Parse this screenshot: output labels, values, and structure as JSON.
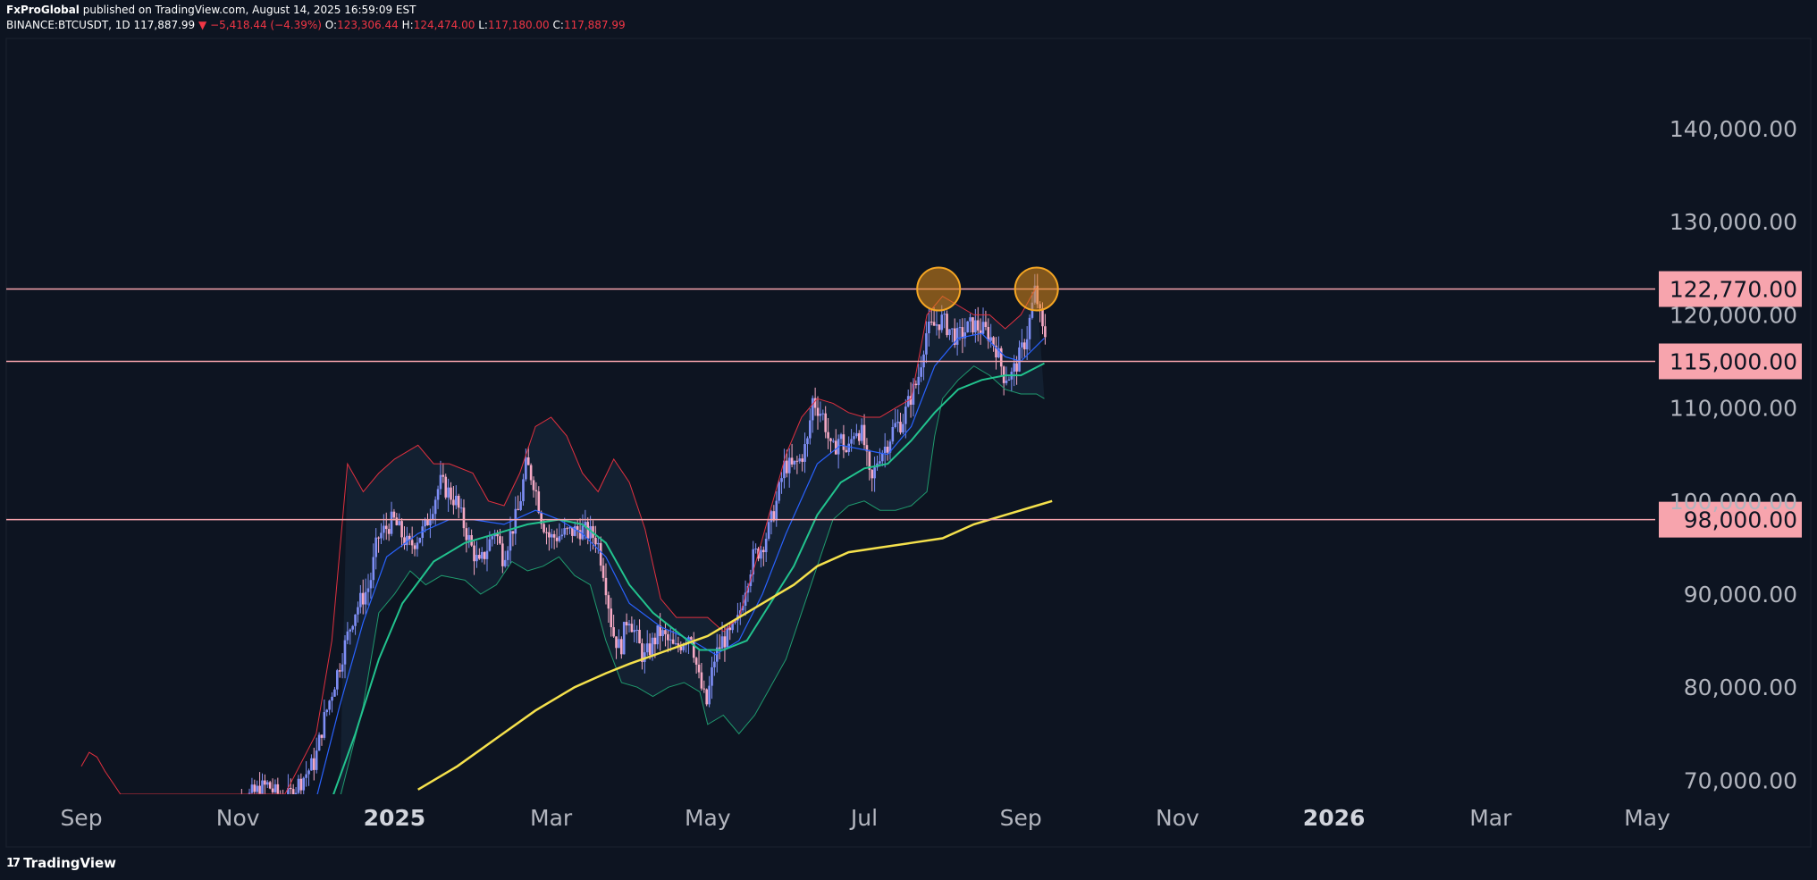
{
  "header": {
    "author": "FxProGlobal",
    "published_text": "published on TradingView.com, August 14, 2025 16:59:09 EST",
    "symbol": "BINANCE:BTCUSDT, 1D",
    "last": "117,887.99",
    "arrow": "▼",
    "change": "−5,418.44 (−4.39%)",
    "o_label": "O:",
    "o_value": "123,306.44",
    "h_label": "H:",
    "h_value": "124,474.00",
    "l_label": "L:",
    "l_value": "117,180.00",
    "c_label": "C:",
    "c_value": "117,887.99"
  },
  "footer": {
    "brand": "TradingView",
    "brand_mark": "17"
  },
  "colors": {
    "background": "#0d1421",
    "candle_up": "#7e8ef5",
    "candle_down": "#f5a9c4",
    "level_line": "#f7a4ad",
    "level_tag_bg": "#f7a4ad",
    "ema_fast": "#2962ff",
    "ema_mid": "#22c38e",
    "sma_200": "#f5e14c",
    "bb_upper": "#e0303f",
    "bb_lower": "#1f9a6e",
    "circle_fill": "#e08a1a",
    "circle_stroke": "#f5a623"
  },
  "chart_data": {
    "type": "candlestick",
    "symbol": "BINANCE:BTCUSDT",
    "timeframe": "1D",
    "ylim": [
      68000,
      150000
    ],
    "y_ticks": [
      "140,000.00",
      "130,000.00",
      "120,000.00",
      "110,000.00",
      "100,000.00",
      "90,000.00",
      "80,000.00",
      "70,000.00"
    ],
    "y_tick_values": [
      140000,
      130000,
      120000,
      110000,
      100000,
      90000,
      80000,
      70000
    ],
    "x_ticks": [
      {
        "label": "Sep",
        "bold": false
      },
      {
        "label": "Nov",
        "bold": false
      },
      {
        "label": "2025",
        "bold": true
      },
      {
        "label": "Mar",
        "bold": false
      },
      {
        "label": "May",
        "bold": false
      },
      {
        "label": "Jul",
        "bold": false
      },
      {
        "label": "Sep",
        "bold": false
      },
      {
        "label": "Nov",
        "bold": false
      },
      {
        "label": "2026",
        "bold": true
      },
      {
        "label": "Mar",
        "bold": false
      },
      {
        "label": "May",
        "bold": false
      }
    ],
    "x_tick_months": [
      0,
      2,
      4,
      6,
      8,
      10,
      12,
      14,
      16,
      18,
      20
    ],
    "horizontal_levels": [
      {
        "label": "122,770.00",
        "value": 122770
      },
      {
        "label": "115,000.00",
        "value": 115000
      },
      {
        "label": "98,000.00",
        "value": 98000
      }
    ],
    "highlight_circles": [
      {
        "month": 10.95,
        "value": 122770
      },
      {
        "month": 12.2,
        "value": 122770
      }
    ],
    "price_path": [
      [
        1.8,
        66000
      ],
      [
        2.2,
        68500
      ],
      [
        2.4,
        69500
      ],
      [
        2.6,
        67500
      ],
      [
        3.0,
        72000
      ],
      [
        3.1,
        76000
      ],
      [
        3.3,
        82000
      ],
      [
        3.5,
        88000
      ],
      [
        3.7,
        91000
      ],
      [
        3.8,
        96000
      ],
      [
        4.0,
        98000
      ],
      [
        4.2,
        95000
      ],
      [
        4.4,
        97000
      ],
      [
        4.6,
        102000
      ],
      [
        4.8,
        100000
      ],
      [
        5.0,
        95000
      ],
      [
        5.1,
        93000
      ],
      [
        5.3,
        97000
      ],
      [
        5.4,
        94000
      ],
      [
        5.6,
        99000
      ],
      [
        5.7,
        104000
      ],
      [
        5.8,
        102000
      ],
      [
        5.9,
        98000
      ],
      [
        6.0,
        96000
      ],
      [
        6.2,
        96500
      ],
      [
        6.4,
        97000
      ],
      [
        6.6,
        96000
      ],
      [
        6.7,
        92000
      ],
      [
        6.8,
        86000
      ],
      [
        6.9,
        84000
      ],
      [
        7.0,
        88000
      ],
      [
        7.2,
        83000
      ],
      [
        7.4,
        86000
      ],
      [
        7.6,
        84000
      ],
      [
        7.8,
        86000
      ],
      [
        7.9,
        81000
      ],
      [
        8.0,
        78000
      ],
      [
        8.1,
        83000
      ],
      [
        8.2,
        85000
      ],
      [
        8.3,
        85500
      ],
      [
        8.4,
        87000
      ],
      [
        8.5,
        91000
      ],
      [
        8.6,
        94000
      ],
      [
        8.7,
        95000
      ],
      [
        8.8,
        97000
      ],
      [
        8.9,
        100000
      ],
      [
        9.0,
        104000
      ],
      [
        9.1,
        103500
      ],
      [
        9.2,
        104500
      ],
      [
        9.3,
        106500
      ],
      [
        9.35,
        111000
      ],
      [
        9.5,
        109000
      ],
      [
        9.6,
        105000
      ],
      [
        9.7,
        107000
      ],
      [
        9.8,
        105000
      ],
      [
        9.9,
        108000
      ],
      [
        10.0,
        107000
      ],
      [
        10.1,
        101500
      ],
      [
        10.2,
        105000
      ],
      [
        10.3,
        106000
      ],
      [
        10.4,
        108000
      ],
      [
        10.5,
        108500
      ],
      [
        10.6,
        111000
      ],
      [
        10.7,
        113000
      ],
      [
        10.8,
        118000
      ],
      [
        11.0,
        119500
      ],
      [
        11.2,
        117500
      ],
      [
        11.4,
        119000
      ],
      [
        11.6,
        118000
      ],
      [
        11.7,
        116500
      ],
      [
        11.8,
        113500
      ],
      [
        11.9,
        113500
      ],
      [
        12.0,
        115500
      ],
      [
        12.1,
        118000
      ],
      [
        12.2,
        122770
      ],
      [
        12.3,
        117900
      ]
    ],
    "ema_fast": [
      [
        3.0,
        68000
      ],
      [
        3.3,
        78000
      ],
      [
        3.6,
        87000
      ],
      [
        3.9,
        94000
      ],
      [
        4.3,
        96500
      ],
      [
        4.7,
        98000
      ],
      [
        5.0,
        98000
      ],
      [
        5.4,
        97500
      ],
      [
        5.8,
        99000
      ],
      [
        6.1,
        98000
      ],
      [
        6.4,
        96500
      ],
      [
        6.7,
        94000
      ],
      [
        7.0,
        89000
      ],
      [
        7.4,
        86500
      ],
      [
        7.8,
        85000
      ],
      [
        8.1,
        83500
      ],
      [
        8.4,
        85000
      ],
      [
        8.7,
        90000
      ],
      [
        9.0,
        96500
      ],
      [
        9.4,
        104000
      ],
      [
        9.7,
        106000
      ],
      [
        10.0,
        105500
      ],
      [
        10.3,
        105000
      ],
      [
        10.6,
        108000
      ],
      [
        10.9,
        114500
      ],
      [
        11.2,
        117500
      ],
      [
        11.5,
        118000
      ],
      [
        11.8,
        115500
      ],
      [
        12.0,
        115000
      ],
      [
        12.3,
        117500
      ]
    ],
    "ema_mid": [
      [
        3.2,
        68000
      ],
      [
        3.5,
        75000
      ],
      [
        3.8,
        83000
      ],
      [
        4.1,
        89000
      ],
      [
        4.5,
        93500
      ],
      [
        4.9,
        95500
      ],
      [
        5.3,
        96500
      ],
      [
        5.7,
        97500
      ],
      [
        6.1,
        98000
      ],
      [
        6.4,
        97500
      ],
      [
        6.7,
        95500
      ],
      [
        7.0,
        91000
      ],
      [
        7.3,
        88000
      ],
      [
        7.6,
        86000
      ],
      [
        7.9,
        84000
      ],
      [
        8.2,
        84000
      ],
      [
        8.5,
        85000
      ],
      [
        8.8,
        89000
      ],
      [
        9.1,
        93000
      ],
      [
        9.4,
        98500
      ],
      [
        9.7,
        102000
      ],
      [
        10.0,
        103500
      ],
      [
        10.3,
        104000
      ],
      [
        10.6,
        106500
      ],
      [
        10.9,
        109500
      ],
      [
        11.2,
        112000
      ],
      [
        11.5,
        113000
      ],
      [
        11.8,
        113500
      ],
      [
        12.0,
        113500
      ],
      [
        12.3,
        114800
      ]
    ],
    "sma_200": [
      [
        4.3,
        69000
      ],
      [
        4.8,
        71500
      ],
      [
        5.3,
        74500
      ],
      [
        5.8,
        77500
      ],
      [
        6.3,
        80000
      ],
      [
        6.7,
        81500
      ],
      [
        7.0,
        82500
      ],
      [
        7.5,
        84000
      ],
      [
        8.0,
        85500
      ],
      [
        8.4,
        87500
      ],
      [
        8.8,
        89500
      ],
      [
        9.1,
        91000
      ],
      [
        9.4,
        93000
      ],
      [
        9.8,
        94500
      ],
      [
        10.2,
        95000
      ],
      [
        10.6,
        95500
      ],
      [
        11.0,
        96000
      ],
      [
        11.4,
        97500
      ],
      [
        11.8,
        98500
      ],
      [
        12.2,
        99500
      ],
      [
        12.4,
        100000
      ]
    ],
    "bb_upper": [
      [
        0.0,
        71500
      ],
      [
        0.1,
        73000
      ],
      [
        0.2,
        72500
      ],
      [
        0.3,
        71000
      ],
      [
        0.5,
        68500
      ],
      [
        2.6,
        68500
      ],
      [
        3.0,
        75000
      ],
      [
        3.2,
        85000
      ],
      [
        3.4,
        104000
      ],
      [
        3.6,
        101000
      ],
      [
        3.8,
        103000
      ],
      [
        4.0,
        104500
      ],
      [
        4.3,
        106000
      ],
      [
        4.5,
        104000
      ],
      [
        4.7,
        104000
      ],
      [
        5.0,
        103000
      ],
      [
        5.2,
        100000
      ],
      [
        5.4,
        99500
      ],
      [
        5.6,
        103000
      ],
      [
        5.8,
        108000
      ],
      [
        6.0,
        109000
      ],
      [
        6.2,
        107000
      ],
      [
        6.4,
        103000
      ],
      [
        6.6,
        101000
      ],
      [
        6.8,
        104500
      ],
      [
        7.0,
        102000
      ],
      [
        7.2,
        97000
      ],
      [
        7.4,
        89500
      ],
      [
        7.6,
        87500
      ],
      [
        7.8,
        87500
      ],
      [
        8.0,
        87500
      ],
      [
        8.2,
        86000
      ],
      [
        8.4,
        87500
      ],
      [
        8.6,
        93000
      ],
      [
        8.8,
        99000
      ],
      [
        9.0,
        105000
      ],
      [
        9.2,
        109000
      ],
      [
        9.4,
        111000
      ],
      [
        9.6,
        110500
      ],
      [
        9.8,
        109500
      ],
      [
        10.0,
        109000
      ],
      [
        10.2,
        109000
      ],
      [
        10.4,
        110000
      ],
      [
        10.6,
        111000
      ],
      [
        10.8,
        120000
      ],
      [
        11.0,
        122000
      ],
      [
        11.2,
        121000
      ],
      [
        11.4,
        120000
      ],
      [
        11.6,
        120000
      ],
      [
        11.8,
        118500
      ],
      [
        12.0,
        120000
      ],
      [
        12.2,
        123000
      ]
    ],
    "bb_lower": [
      [
        3.3,
        68000
      ],
      [
        3.6,
        78000
      ],
      [
        3.8,
        88000
      ],
      [
        4.0,
        90000
      ],
      [
        4.2,
        92500
      ],
      [
        4.4,
        91000
      ],
      [
        4.6,
        92000
      ],
      [
        4.9,
        91500
      ],
      [
        5.1,
        90000
      ],
      [
        5.3,
        91000
      ],
      [
        5.5,
        93500
      ],
      [
        5.7,
        92500
      ],
      [
        5.9,
        93000
      ],
      [
        6.1,
        94000
      ],
      [
        6.3,
        92000
      ],
      [
        6.5,
        91000
      ],
      [
        6.7,
        85000
      ],
      [
        6.9,
        80500
      ],
      [
        7.1,
        80000
      ],
      [
        7.3,
        79000
      ],
      [
        7.5,
        80000
      ],
      [
        7.7,
        80500
      ],
      [
        7.9,
        79500
      ],
      [
        8.0,
        76000
      ],
      [
        8.2,
        77000
      ],
      [
        8.4,
        75000
      ],
      [
        8.6,
        77000
      ],
      [
        8.8,
        80000
      ],
      [
        9.0,
        83000
      ],
      [
        9.2,
        88000
      ],
      [
        9.4,
        93000
      ],
      [
        9.6,
        98000
      ],
      [
        9.8,
        99500
      ],
      [
        10.0,
        100000
      ],
      [
        10.2,
        99000
      ],
      [
        10.4,
        99000
      ],
      [
        10.6,
        99500
      ],
      [
        10.8,
        101000
      ],
      [
        10.9,
        107000
      ],
      [
        11.0,
        111000
      ],
      [
        11.2,
        113000
      ],
      [
        11.4,
        114500
      ],
      [
        11.6,
        113500
      ],
      [
        11.8,
        112000
      ],
      [
        12.0,
        111500
      ],
      [
        12.2,
        111500
      ],
      [
        12.3,
        111000
      ]
    ]
  }
}
